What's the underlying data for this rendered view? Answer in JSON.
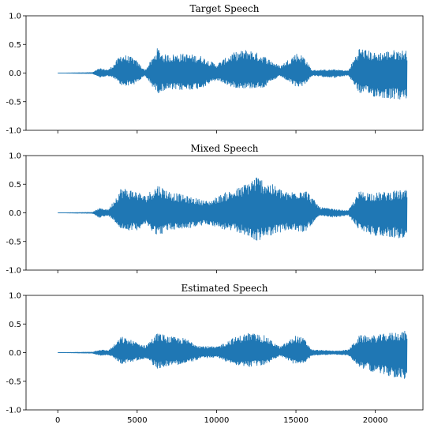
{
  "chart_data": [
    {
      "type": "line",
      "title": "Target Speech",
      "xlabel": "",
      "ylabel": "",
      "xlim": [
        -2000,
        23000
      ],
      "ylim": [
        -1.0,
        1.0
      ],
      "yticks": [
        "1.0",
        "0.5",
        "0.0",
        "-0.5",
        "-1.0"
      ],
      "x_tick_labels_shown": false,
      "series": [
        {
          "color": "#1f77b4",
          "envelope": [
            {
              "x": 0,
              "upper": 0.0,
              "lower": 0.0
            },
            {
              "x": 2200,
              "upper": 0.01,
              "lower": -0.01
            },
            {
              "x": 2600,
              "upper": 0.08,
              "lower": -0.08
            },
            {
              "x": 3200,
              "upper": 0.06,
              "lower": -0.05
            },
            {
              "x": 3600,
              "upper": 0.18,
              "lower": -0.1
            },
            {
              "x": 4000,
              "upper": 0.34,
              "lower": -0.23
            },
            {
              "x": 4800,
              "upper": 0.26,
              "lower": -0.2
            },
            {
              "x": 5500,
              "upper": 0.05,
              "lower": -0.05
            },
            {
              "x": 6000,
              "upper": 0.28,
              "lower": -0.25
            },
            {
              "x": 6300,
              "upper": 0.45,
              "lower": -0.35
            },
            {
              "x": 6700,
              "upper": 0.32,
              "lower": -0.3
            },
            {
              "x": 8000,
              "upper": 0.34,
              "lower": -0.3
            },
            {
              "x": 9000,
              "upper": 0.3,
              "lower": -0.27
            },
            {
              "x": 10000,
              "upper": 0.15,
              "lower": -0.12
            },
            {
              "x": 11000,
              "upper": 0.35,
              "lower": -0.25
            },
            {
              "x": 12000,
              "upper": 0.42,
              "lower": -0.27
            },
            {
              "x": 13000,
              "upper": 0.3,
              "lower": -0.25
            },
            {
              "x": 14000,
              "upper": 0.12,
              "lower": -0.05
            },
            {
              "x": 15000,
              "upper": 0.35,
              "lower": -0.24
            },
            {
              "x": 15500,
              "upper": 0.3,
              "lower": -0.22
            },
            {
              "x": 16000,
              "upper": 0.05,
              "lower": -0.05
            },
            {
              "x": 17500,
              "upper": 0.06,
              "lower": -0.08
            },
            {
              "x": 18300,
              "upper": 0.04,
              "lower": -0.04
            },
            {
              "x": 19000,
              "upper": 0.45,
              "lower": -0.35
            },
            {
              "x": 20000,
              "upper": 0.35,
              "lower": -0.42
            },
            {
              "x": 21000,
              "upper": 0.4,
              "lower": -0.45
            },
            {
              "x": 22000,
              "upper": 0.4,
              "lower": -0.48
            }
          ]
        }
      ]
    },
    {
      "type": "line",
      "title": "Mixed Speech",
      "xlabel": "",
      "ylabel": "",
      "xlim": [
        -2000,
        23000
      ],
      "ylim": [
        -1.0,
        1.0
      ],
      "yticks": [
        "1.0",
        "0.5",
        "0.0",
        "-0.5",
        "-1.0"
      ],
      "x_tick_labels_shown": false,
      "series": [
        {
          "color": "#1f77b4",
          "envelope": [
            {
              "x": 0,
              "upper": 0.0,
              "lower": 0.0
            },
            {
              "x": 2200,
              "upper": 0.01,
              "lower": -0.01
            },
            {
              "x": 2600,
              "upper": 0.08,
              "lower": -0.08
            },
            {
              "x": 3200,
              "upper": 0.06,
              "lower": -0.05
            },
            {
              "x": 3600,
              "upper": 0.25,
              "lower": -0.15
            },
            {
              "x": 4000,
              "upper": 0.45,
              "lower": -0.3
            },
            {
              "x": 5000,
              "upper": 0.38,
              "lower": -0.3
            },
            {
              "x": 5500,
              "upper": 0.3,
              "lower": -0.2
            },
            {
              "x": 6300,
              "upper": 0.5,
              "lower": -0.4
            },
            {
              "x": 7000,
              "upper": 0.38,
              "lower": -0.3
            },
            {
              "x": 8000,
              "upper": 0.3,
              "lower": -0.28
            },
            {
              "x": 9500,
              "upper": 0.2,
              "lower": -0.2
            },
            {
              "x": 10500,
              "upper": 0.35,
              "lower": -0.3
            },
            {
              "x": 11500,
              "upper": 0.45,
              "lower": -0.35
            },
            {
              "x": 12500,
              "upper": 0.65,
              "lower": -0.5
            },
            {
              "x": 13500,
              "upper": 0.5,
              "lower": -0.38
            },
            {
              "x": 14500,
              "upper": 0.35,
              "lower": -0.3
            },
            {
              "x": 15500,
              "upper": 0.45,
              "lower": -0.35
            },
            {
              "x": 16500,
              "upper": 0.1,
              "lower": -0.05
            },
            {
              "x": 17500,
              "upper": 0.06,
              "lower": -0.08
            },
            {
              "x": 18300,
              "upper": 0.04,
              "lower": -0.04
            },
            {
              "x": 19000,
              "upper": 0.38,
              "lower": -0.3
            },
            {
              "x": 20000,
              "upper": 0.35,
              "lower": -0.4
            },
            {
              "x": 21000,
              "upper": 0.38,
              "lower": -0.42
            },
            {
              "x": 22000,
              "upper": 0.4,
              "lower": -0.48
            }
          ]
        }
      ]
    },
    {
      "type": "line",
      "title": "Estimated Speech",
      "xlabel": "",
      "ylabel": "",
      "xlim": [
        -2000,
        23000
      ],
      "ylim": [
        -1.0,
        1.0
      ],
      "xticks": [
        0,
        5000,
        10000,
        15000,
        20000
      ],
      "yticks": [
        "1.0",
        "0.5",
        "0.0",
        "-0.5",
        "-1.0"
      ],
      "x_tick_labels_shown": true,
      "series": [
        {
          "color": "#1f77b4",
          "envelope": [
            {
              "x": 0,
              "upper": 0.0,
              "lower": 0.0
            },
            {
              "x": 2200,
              "upper": 0.01,
              "lower": -0.01
            },
            {
              "x": 2600,
              "upper": 0.05,
              "lower": -0.05
            },
            {
              "x": 3200,
              "upper": 0.04,
              "lower": -0.04
            },
            {
              "x": 3600,
              "upper": 0.15,
              "lower": -0.1
            },
            {
              "x": 4000,
              "upper": 0.28,
              "lower": -0.2
            },
            {
              "x": 4800,
              "upper": 0.2,
              "lower": -0.15
            },
            {
              "x": 5500,
              "upper": 0.12,
              "lower": -0.1
            },
            {
              "x": 6300,
              "upper": 0.35,
              "lower": -0.28
            },
            {
              "x": 7000,
              "upper": 0.28,
              "lower": -0.22
            },
            {
              "x": 8000,
              "upper": 0.25,
              "lower": -0.2
            },
            {
              "x": 9000,
              "upper": 0.12,
              "lower": -0.1
            },
            {
              "x": 10000,
              "upper": 0.1,
              "lower": -0.08
            },
            {
              "x": 11000,
              "upper": 0.25,
              "lower": -0.2
            },
            {
              "x": 12000,
              "upper": 0.35,
              "lower": -0.25
            },
            {
              "x": 13000,
              "upper": 0.3,
              "lower": -0.22
            },
            {
              "x": 14000,
              "upper": 0.1,
              "lower": -0.05
            },
            {
              "x": 15000,
              "upper": 0.3,
              "lower": -0.22
            },
            {
              "x": 15500,
              "upper": 0.25,
              "lower": -0.2
            },
            {
              "x": 16000,
              "upper": 0.05,
              "lower": -0.05
            },
            {
              "x": 17500,
              "upper": 0.03,
              "lower": -0.03
            },
            {
              "x": 18300,
              "upper": 0.05,
              "lower": -0.05
            },
            {
              "x": 19000,
              "upper": 0.3,
              "lower": -0.25
            },
            {
              "x": 20000,
              "upper": 0.3,
              "lower": -0.35
            },
            {
              "x": 21000,
              "upper": 0.35,
              "lower": -0.42
            },
            {
              "x": 22000,
              "upper": 0.38,
              "lower": -0.48
            }
          ]
        }
      ]
    }
  ]
}
